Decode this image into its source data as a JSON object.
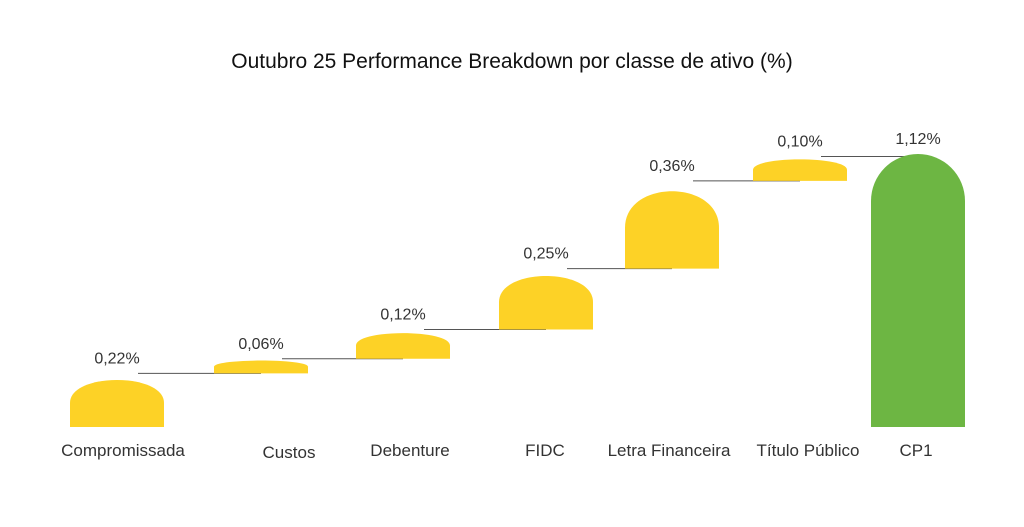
{
  "chart_data": {
    "type": "waterfall",
    "title": "Outubro 25 Performance Breakdown por classe de ativo (%)",
    "categories": [
      "Compromissada",
      "Custos",
      "Debenture",
      "FIDC",
      "Letra Financeira",
      "Título Público",
      "CP1"
    ],
    "values": [
      0.22,
      0.06,
      0.12,
      0.25,
      0.36,
      0.1,
      1.12
    ],
    "value_labels": [
      "0,22%",
      "0,06%",
      "0,12%",
      "0,25%",
      "0,36%",
      "0,10%",
      "1,12%"
    ],
    "total_index": 6,
    "colors": {
      "increase": "#FDD226",
      "total": "#6DB643",
      "connector": "#555555"
    },
    "ylim": [
      0,
      1.12
    ],
    "grid": false,
    "legend": "none"
  }
}
